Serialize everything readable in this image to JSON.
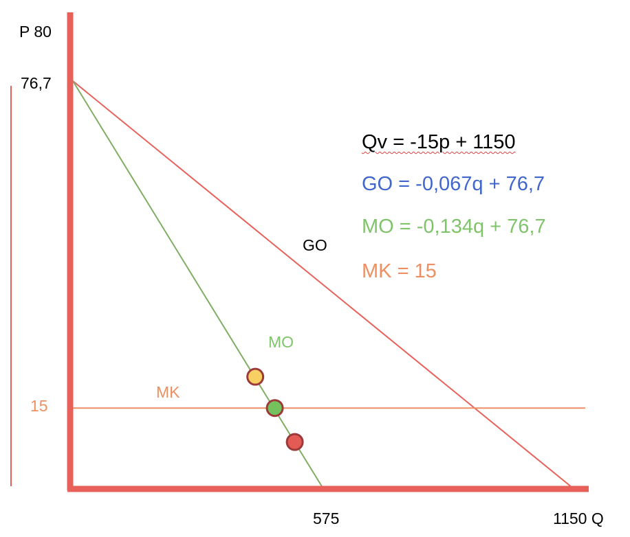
{
  "colors": {
    "axis": "#e8605a",
    "go": "#e8605a",
    "mo": "#80ad62",
    "mk": "#ee8f62",
    "black": "#000000",
    "blue": "#4066cc",
    "green": "#7fc46a",
    "orange": "#ee8f62",
    "point_yellow": "#f7cf63",
    "point_green": "#73c25e",
    "point_red": "#e45a55",
    "point_stroke": "#9c3a3a"
  },
  "chart_data": {
    "type": "line",
    "title": "",
    "xlabel": "Q",
    "ylabel": "P",
    "xlim": [
      0,
      1150
    ],
    "ylim": [
      0,
      80
    ],
    "axis_labels": {
      "y_top": "P  80",
      "y_intercept": "76,7",
      "y_mk": "15",
      "x_mid": "575",
      "x_end": "1150 Q"
    },
    "series": [
      {
        "name": "GO",
        "label": "GO",
        "type": "line",
        "points": [
          [
            0,
            76.7
          ],
          [
            1150,
            0
          ]
        ]
      },
      {
        "name": "MO",
        "label": "MO",
        "type": "line",
        "points": [
          [
            0,
            76.7
          ],
          [
            575,
            0
          ]
        ]
      },
      {
        "name": "MK",
        "label": "MK",
        "type": "line",
        "points": [
          [
            0,
            15
          ],
          [
            1180,
            15
          ]
        ]
      }
    ],
    "highlight_points": [
      {
        "name": "yellow",
        "x": 420,
        "y": 20.9,
        "color": "#f7cf63"
      },
      {
        "name": "green",
        "x": 465,
        "y": 15,
        "color": "#73c25e"
      },
      {
        "name": "red",
        "x": 511,
        "y": 8.6,
        "color": "#e45a55"
      }
    ],
    "equations": [
      {
        "text": "Qv = -15p + 1150",
        "color": "#000000"
      },
      {
        "text": "GO = -0,067q + 76,7",
        "color": "#4066cc"
      },
      {
        "text": "MO = -0,134q + 76,7",
        "color": "#7fc46a"
      },
      {
        "text": "MK = 15",
        "color": "#ee8f62"
      }
    ]
  }
}
